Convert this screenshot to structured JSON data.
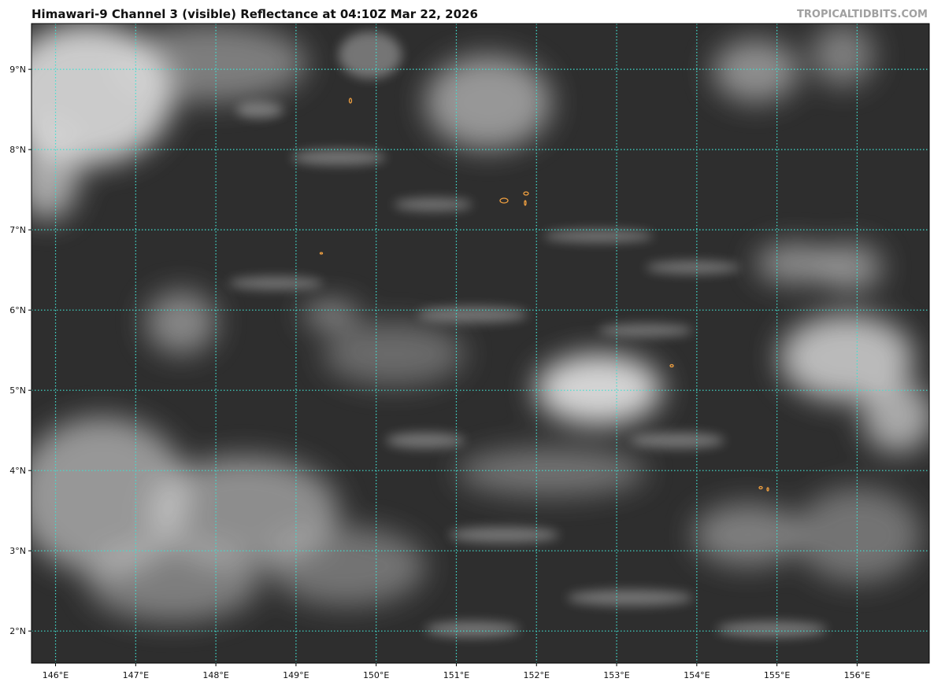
{
  "header": {
    "title": "Himawari-9 Channel 3 (visible) Reflectance at 04:10Z Mar 22, 2026",
    "credit": "TROPICALTIDBITS.COM"
  },
  "map": {
    "extent": {
      "lon": [
        145.7,
        156.9
      ],
      "lat": [
        1.6,
        9.57
      ]
    },
    "grid": {
      "on": true,
      "style": "dotted",
      "color": "#40e0d0"
    },
    "lon_ticks": [
      {
        "value": 146,
        "label": "146°E"
      },
      {
        "value": 147,
        "label": "147°E"
      },
      {
        "value": 148,
        "label": "148°E"
      },
      {
        "value": 149,
        "label": "149°E"
      },
      {
        "value": 150,
        "label": "150°E"
      },
      {
        "value": 151,
        "label": "151°E"
      },
      {
        "value": 152,
        "label": "152°E"
      },
      {
        "value": 153,
        "label": "153°E"
      },
      {
        "value": 154,
        "label": "154°E"
      },
      {
        "value": 155,
        "label": "155°E"
      },
      {
        "value": 156,
        "label": "156°E"
      }
    ],
    "lat_ticks": [
      {
        "value": 9,
        "label": "9°N"
      },
      {
        "value": 8,
        "label": "8°N"
      },
      {
        "value": 7,
        "label": "7°N"
      },
      {
        "value": 6,
        "label": "6°N"
      },
      {
        "value": 5,
        "label": "5°N"
      },
      {
        "value": 4,
        "label": "4°N"
      },
      {
        "value": 3,
        "label": "3°N"
      },
      {
        "value": 2,
        "label": "2°N"
      }
    ],
    "colors": {
      "ocean": "#2e2e2e",
      "cloud": "#e8e8e8",
      "coastline": "#f0a040"
    }
  }
}
